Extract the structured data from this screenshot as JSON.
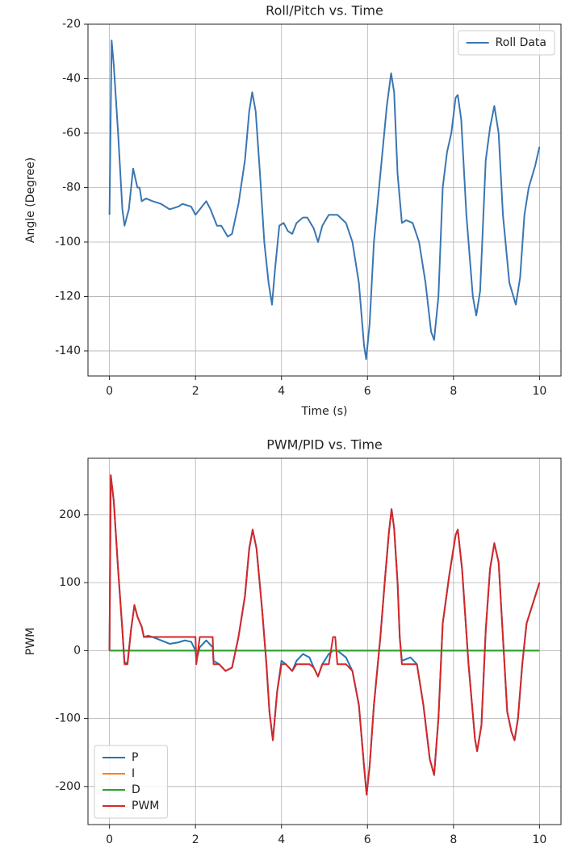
{
  "chart_data": [
    {
      "type": "line",
      "title": "Roll/Pitch vs. Time",
      "xlabel": "Time (s)",
      "ylabel": "Angle (Degree)",
      "x": [
        0,
        0.05,
        0.1,
        0.2,
        0.3,
        0.35,
        0.45,
        0.55,
        0.65,
        0.7,
        0.75,
        0.85,
        1.0,
        1.2,
        1.4,
        1.6,
        1.7,
        1.9,
        2.0,
        2.1,
        2.25,
        2.35,
        2.5,
        2.6,
        2.75,
        2.85,
        3.0,
        3.15,
        3.25,
        3.32,
        3.4,
        3.5,
        3.6,
        3.7,
        3.78,
        3.85,
        3.95,
        4.05,
        4.15,
        4.25,
        4.35,
        4.5,
        4.6,
        4.75,
        4.85,
        4.95,
        5.1,
        5.3,
        5.5,
        5.65,
        5.8,
        5.92,
        5.97,
        6.05,
        6.15,
        6.3,
        6.45,
        6.55,
        6.62,
        6.7,
        6.8,
        6.9,
        7.05,
        7.2,
        7.35,
        7.48,
        7.55,
        7.65,
        7.75,
        7.85,
        7.95,
        8.05,
        8.1,
        8.18,
        8.3,
        8.45,
        8.53,
        8.62,
        8.75,
        8.85,
        8.95,
        9.05,
        9.15,
        9.3,
        9.45,
        9.55,
        9.65,
        9.75,
        9.9,
        10.0
      ],
      "series": [
        {
          "name": "Roll Data",
          "color": "#3a76b2",
          "values": [
            -90,
            -26,
            -35,
            -60,
            -88,
            -94,
            -88,
            -73,
            -80,
            -80,
            -85,
            -84,
            -85,
            -86,
            -88,
            -87,
            -86,
            -87,
            -90,
            -88,
            -85,
            -88,
            -94,
            -94,
            -98,
            -97,
            -86,
            -70,
            -52,
            -45,
            -52,
            -75,
            -100,
            -115,
            -123,
            -110,
            -94,
            -93,
            -96,
            -97,
            -93,
            -91,
            -91,
            -95,
            -100,
            -94,
            -90,
            -90,
            -93,
            -100,
            -115,
            -138,
            -143,
            -130,
            -100,
            -75,
            -50,
            -38,
            -45,
            -75,
            -93,
            -92,
            -93,
            -100,
            -115,
            -133,
            -136,
            -120,
            -80,
            -67,
            -60,
            -47,
            -46,
            -55,
            -90,
            -120,
            -127,
            -118,
            -70,
            -58,
            -50,
            -60,
            -90,
            -115,
            -123,
            -113,
            -90,
            -80,
            -72,
            -65
          ]
        }
      ],
      "xlim": [
        -0.5,
        10.5
      ],
      "ylim": [
        -149.2,
        -20
      ],
      "xticks": [
        0,
        2,
        4,
        6,
        8,
        10
      ],
      "yticks": [
        -140,
        -120,
        -100,
        -80,
        -60,
        -40,
        -20
      ],
      "grid": true,
      "legend": "upper right"
    },
    {
      "type": "line",
      "title": "PWM/PID vs. Time",
      "xlabel": "Time (s)",
      "ylabel": "PWM",
      "x": [
        0,
        0.03,
        0.1,
        0.2,
        0.3,
        0.35,
        0.42,
        0.5,
        0.58,
        0.65,
        0.75,
        0.8,
        0.9,
        1.0,
        1.2,
        1.4,
        1.6,
        1.75,
        1.9,
        2.0,
        2.02,
        2.1,
        2.25,
        2.4,
        2.42,
        2.55,
        2.7,
        2.85,
        3.0,
        3.15,
        3.25,
        3.33,
        3.42,
        3.55,
        3.65,
        3.72,
        3.8,
        3.9,
        4.0,
        4.1,
        4.25,
        4.35,
        4.5,
        4.65,
        4.75,
        4.85,
        4.95,
        5.1,
        5.2,
        5.25,
        5.3,
        5.5,
        5.65,
        5.8,
        5.92,
        5.98,
        6.05,
        6.15,
        6.3,
        6.4,
        6.5,
        6.56,
        6.62,
        6.7,
        6.75,
        6.8,
        7.0,
        7.15,
        7.3,
        7.45,
        7.55,
        7.65,
        7.75,
        7.9,
        8.05,
        8.1,
        8.2,
        8.35,
        8.5,
        8.55,
        8.65,
        8.75,
        8.85,
        8.95,
        9.05,
        9.15,
        9.25,
        9.35,
        9.42,
        9.5,
        9.6,
        9.7,
        9.85,
        10.0
      ],
      "series": [
        {
          "name": "P",
          "color": "#1f77b4",
          "values": [
            0,
            258,
            220,
            120,
            30,
            -18,
            -18,
            30,
            67,
            50,
            35,
            20,
            22,
            20,
            15,
            10,
            12,
            15,
            13,
            0,
            -15,
            5,
            15,
            5,
            -15,
            -20,
            -30,
            -25,
            20,
            80,
            150,
            178,
            150,
            60,
            -20,
            -90,
            -132,
            -60,
            -15,
            -20,
            -30,
            -15,
            -5,
            -10,
            -25,
            -38,
            -20,
            -5,
            0,
            0,
            0,
            -10,
            -30,
            -80,
            -170,
            -212,
            -170,
            -80,
            20,
            100,
            175,
            208,
            180,
            100,
            20,
            -15,
            -10,
            -20,
            -80,
            -160,
            -183,
            -100,
            40,
            110,
            170,
            178,
            120,
            -20,
            -130,
            -148,
            -110,
            30,
            120,
            158,
            130,
            20,
            -90,
            -120,
            -132,
            -100,
            -20,
            40,
            70,
            100
          ]
        },
        {
          "name": "I",
          "color": "#ff7f0e",
          "x": [
            0,
            10
          ],
          "values": [
            0,
            0
          ]
        },
        {
          "name": "D",
          "color": "#2ca02c",
          "x": [
            0,
            10
          ],
          "values": [
            0,
            0
          ]
        },
        {
          "name": "PWM",
          "color": "#d62728",
          "values": [
            0,
            258,
            220,
            120,
            30,
            -20,
            -20,
            30,
            67,
            50,
            35,
            20,
            20,
            20,
            20,
            20,
            20,
            20,
            20,
            20,
            -20,
            20,
            20,
            20,
            -20,
            -20,
            -30,
            -25,
            20,
            80,
            150,
            178,
            150,
            60,
            -20,
            -90,
            -132,
            -60,
            -20,
            -20,
            -30,
            -20,
            -20,
            -20,
            -25,
            -38,
            -20,
            -20,
            20,
            20,
            -20,
            -20,
            -30,
            -80,
            -170,
            -212,
            -170,
            -80,
            20,
            100,
            175,
            208,
            180,
            100,
            20,
            -20,
            -20,
            -20,
            -80,
            -160,
            -183,
            -100,
            40,
            110,
            170,
            178,
            120,
            -20,
            -130,
            -148,
            -110,
            30,
            120,
            158,
            130,
            20,
            -90,
            -120,
            -132,
            -100,
            -20,
            40,
            70,
            100
          ]
        }
      ],
      "xlim": [
        -0.5,
        10.5
      ],
      "ylim": [
        -256,
        283
      ],
      "xticks": [
        0,
        2,
        4,
        6,
        8,
        10
      ],
      "yticks": [
        -200,
        -100,
        0,
        100,
        200
      ],
      "grid": true,
      "legend": "lower left"
    }
  ]
}
